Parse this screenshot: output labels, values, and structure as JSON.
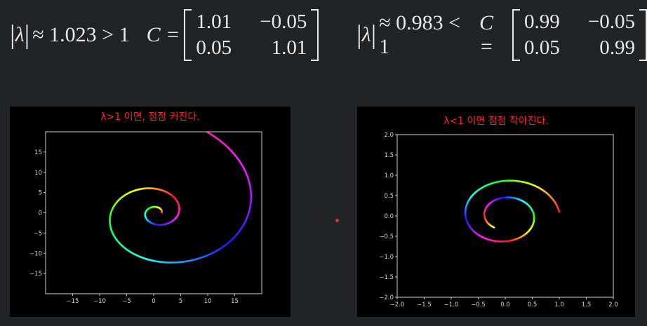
{
  "left_formula": {
    "lambda_sym": "λ",
    "relation": "≈ 1.023 > 1",
    "c_label": "C =",
    "matrix": [
      "1.01",
      "−0.05",
      "0.05",
      "1.01"
    ]
  },
  "right_formula": {
    "lambda_sym": "λ",
    "relation": "≈ 0.983 < 1",
    "c_label": "C =",
    "matrix": [
      "0.99",
      "−0.05",
      "0.05",
      "0.99"
    ]
  },
  "chart_data": [
    {
      "type": "line",
      "title": "λ>1 이면, 점점 커진다.",
      "xlim": [
        -20,
        20
      ],
      "ylim": [
        -20,
        20
      ],
      "xticks": [
        "−15",
        "−10",
        "−5",
        "0",
        "5",
        "10",
        "15"
      ],
      "yticks": [
        "15",
        "10",
        "5",
        "0",
        "−5",
        "−10",
        "−15"
      ],
      "curve": {
        "kind": "growing-spiral",
        "start": [
          1.0,
          0.0
        ],
        "end_radius": 20,
        "color_cycle": "hue"
      },
      "grid": false,
      "background": "#000000"
    },
    {
      "type": "line",
      "title": "λ<1 이면 점점 작아진다.",
      "xlim": [
        -2.0,
        2.0
      ],
      "ylim": [
        -2.0,
        2.0
      ],
      "xticks": [
        "−2.0",
        "−1.5",
        "−1.0",
        "−0.5",
        "0.0",
        "0.5",
        "1.0",
        "1.5",
        "2.0"
      ],
      "yticks": [
        "2.0",
        "1.5",
        "1.0",
        "0.5",
        "0.0",
        "−0.5",
        "−1.0",
        "−1.5",
        "−2.0"
      ],
      "curve": {
        "kind": "decaying-spiral",
        "start": [
          1.0,
          0.1
        ],
        "end": [
          0.1,
          -0.17
        ],
        "color_cycle": "hue"
      },
      "grid": false,
      "background": "#000000"
    }
  ],
  "colors": {
    "caption": "#ff1f3d",
    "page_bg": "#222325",
    "panel_bg": "#000000",
    "axis": "#cfcfcf"
  }
}
